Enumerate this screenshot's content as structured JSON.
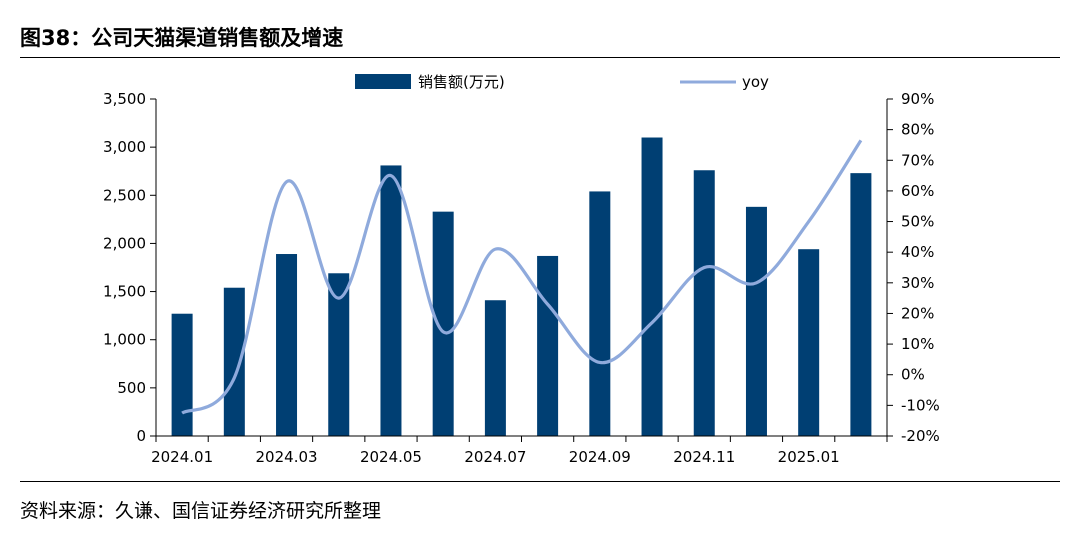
{
  "figure_title": "图38：公司天猫渠道销售额及增速",
  "source_note": "资料来源：久谦、国信证券经济研究所整理",
  "colors": {
    "bar": "#003f73",
    "line": "#8faadc",
    "axis": "#000000"
  },
  "chart_data": {
    "type": "bar+line",
    "categories": [
      "2024.01",
      "2024.02",
      "2024.03",
      "2024.04",
      "2024.05",
      "2024.06",
      "2024.07",
      "2024.08",
      "2024.09",
      "2024.10",
      "2024.11",
      "2024.12",
      "2025.01",
      "2025.02"
    ],
    "x_tick_labels": [
      "2024.01",
      "2024.03",
      "2024.05",
      "2024.07",
      "2024.09",
      "2024.11",
      "2025.01"
    ],
    "series": [
      {
        "name": "销售额(万元)",
        "type": "bar",
        "axis": "left",
        "values": [
          1270,
          1540,
          1890,
          1690,
          2810,
          2330,
          1410,
          1870,
          2540,
          3100,
          2760,
          2380,
          1940,
          2730
        ]
      },
      {
        "name": "yoy",
        "type": "line",
        "axis": "right",
        "values": [
          -12.5,
          -1,
          63,
          25,
          65,
          14,
          41,
          23,
          4,
          17,
          35,
          30,
          50,
          76.5
        ]
      }
    ],
    "left_axis": {
      "ylim": [
        0,
        3500
      ],
      "ticks": [
        "0",
        "500",
        "1,000",
        "1,500",
        "2,000",
        "2,500",
        "3,000",
        "3,500"
      ]
    },
    "right_axis": {
      "ylim": [
        -20,
        90
      ],
      "ticks": [
        "-20%",
        "-10%",
        "0%",
        "10%",
        "20%",
        "30%",
        "40%",
        "50%",
        "60%",
        "70%",
        "80%",
        "90%"
      ]
    },
    "legend": "top",
    "grid": false
  }
}
